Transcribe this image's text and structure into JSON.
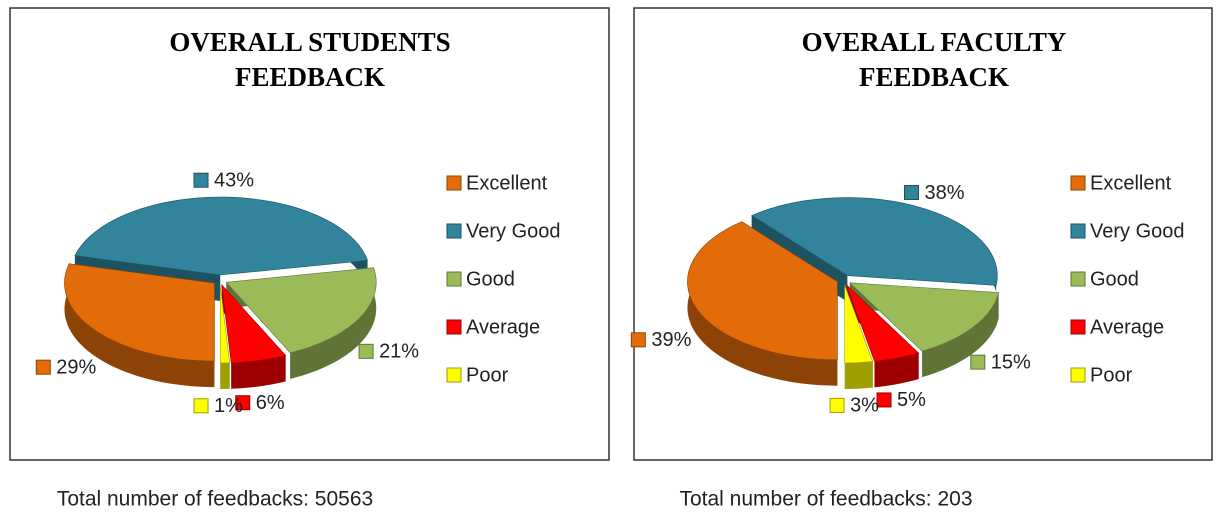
{
  "chart_data": [
    {
      "type": "pie",
      "title": "OVERALL STUDENTS FEEDBACK",
      "categories": [
        "Excellent",
        "Very Good",
        "Good",
        "Average",
        "Poor"
      ],
      "values": [
        29,
        43,
        21,
        6,
        1
      ],
      "value_labels": [
        "29%",
        "43%",
        "21%",
        "6%",
        "1%"
      ],
      "colors": [
        "#e36c09",
        "#31849b",
        "#9bbb59",
        "#ff0000",
        "#ffff00"
      ],
      "legend": "right"
    },
    {
      "type": "pie",
      "title": "OVERALL FACULTY FEEDBACK",
      "categories": [
        "Excellent",
        "Very Good",
        "Good",
        "Average",
        "Poor"
      ],
      "values": [
        39,
        38,
        15,
        5,
        3
      ],
      "value_labels": [
        "39%",
        "38%",
        "15%",
        "5%",
        "3%"
      ],
      "colors": [
        "#e36c09",
        "#31849b",
        "#9bbb59",
        "#ff0000",
        "#ffff00"
      ],
      "legend": "right"
    }
  ],
  "captions": [
    "Total number of feedbacks: 50563",
    "Total number of feedbacks: 203"
  ]
}
